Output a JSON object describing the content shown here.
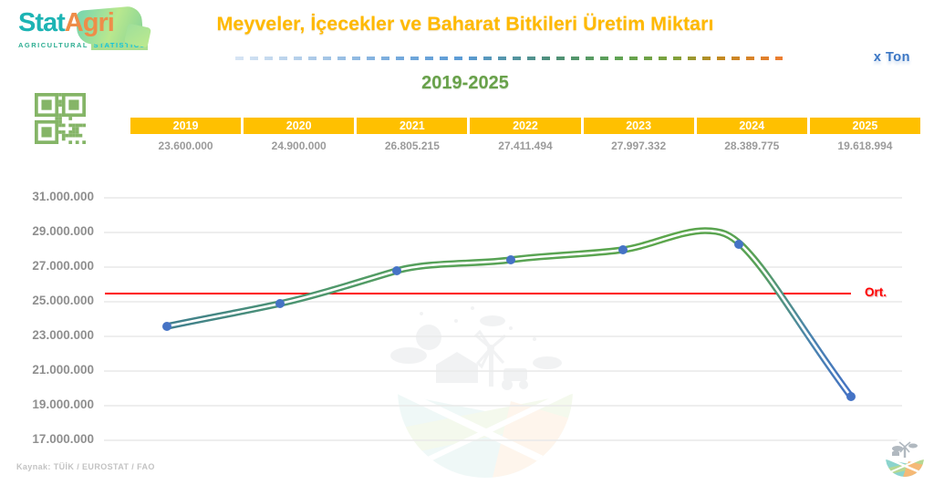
{
  "brand": {
    "stat": "Stat",
    "agri": "Agri",
    "tagline_left": "AGRICULTURAL",
    "tagline_right": "STATISTICS"
  },
  "header": {
    "title": "Meyveler, İçecekler ve Baharat Bitkileri Üretim Miktarı",
    "subtitle": "2019-2025",
    "unit_prefix": "x",
    "unit": "Ton"
  },
  "chart_data": {
    "type": "line",
    "title": "Meyveler, İçecekler ve Baharat Bitkileri Üretim Miktarı",
    "subtitle": "2019-2025",
    "unit": "x Ton",
    "categories": [
      "2019",
      "2020",
      "2021",
      "2022",
      "2023",
      "2024",
      "2025"
    ],
    "values": [
      23600000,
      24900000,
      26805215,
      27411494,
      27997332,
      28389775,
      19618994
    ],
    "value_labels": [
      "23.600.000",
      "24.900.000",
      "26.805.215",
      "27.411.494",
      "27.997.332",
      "28.389.775",
      "19.618.994"
    ],
    "ylim": [
      17000000,
      31000000
    ],
    "ytick_step": 2000000,
    "ytick_labels": [
      "31.000.000",
      "29.000.000",
      "27.000.000",
      "25.000.000",
      "23.000.000",
      "21.000.000",
      "19.000.000",
      "17.000.000"
    ],
    "grid": "horizontal",
    "legend": "none",
    "average_line": {
      "label": "Ort.",
      "value_estimate": 25530000,
      "color": "#FE0000"
    },
    "line_gradient": [
      "#3F7E8E",
      "#57A258",
      "#5CA64B",
      "#4472C4"
    ],
    "marker_color": "#4573C5"
  },
  "footer": {
    "source": "Kaynak: TÜİK / EUROSTAT / FAO"
  },
  "colors": {
    "title_gold": "#FFB900",
    "table_header_bg": "#FFC000",
    "table_value_gray": "#9B9B9B",
    "subtitle_green": "#68A14A",
    "unit_blue": "#3B76C4",
    "qr_green": "#85B567",
    "axis_gray": "#8F8F8F",
    "gridline": "#E9E9E9"
  },
  "icons": {
    "qr_code": "qr-code",
    "watermark": "farm-scene-watermark",
    "footer_logo": "farm-circle-logo"
  }
}
